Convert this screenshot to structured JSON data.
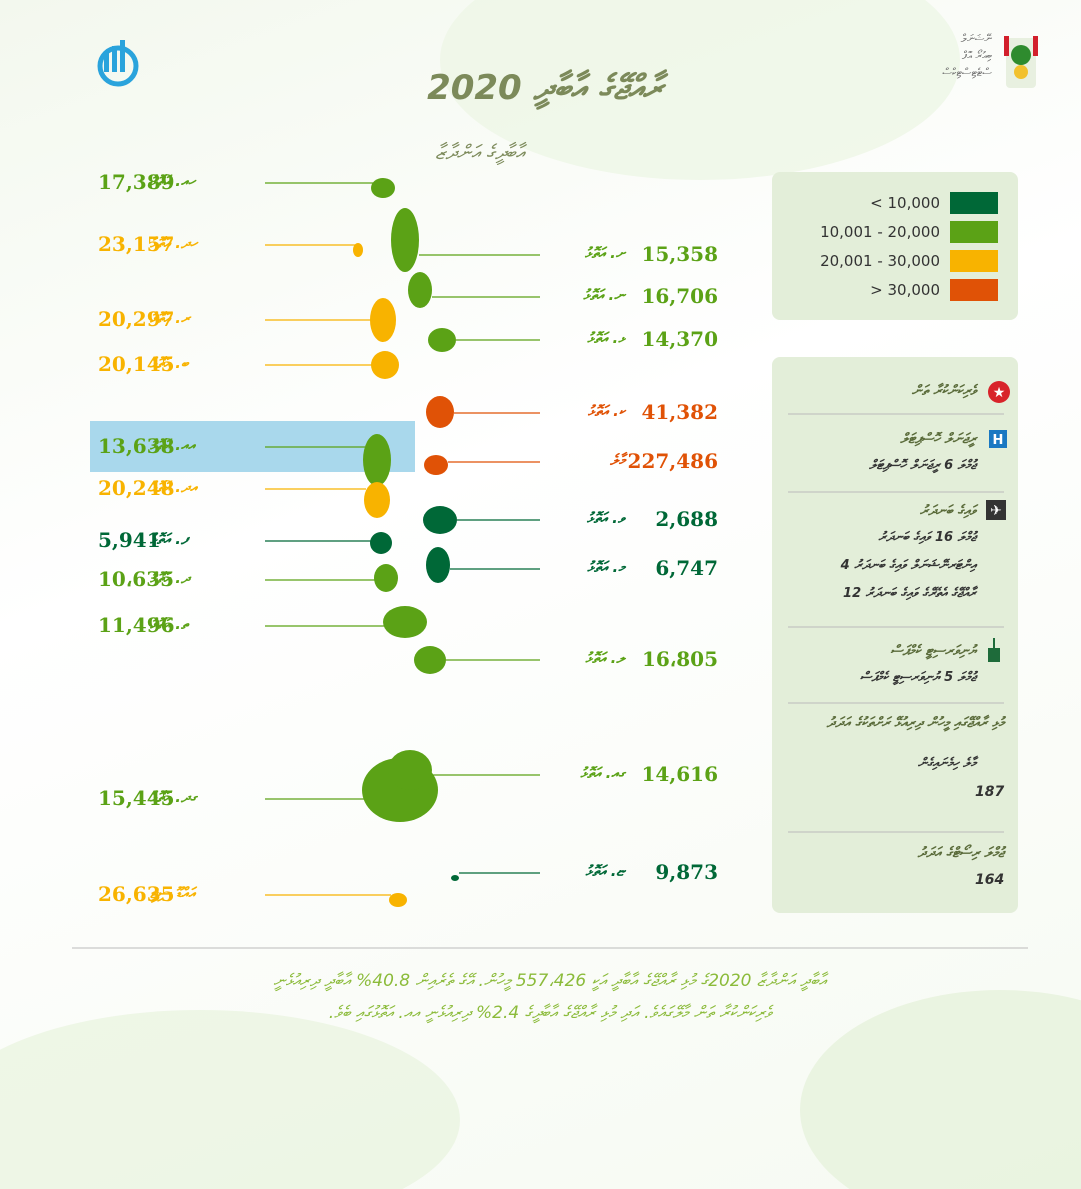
{
  "header": {
    "title": "ރާއްޖޭގެ އާބާދީ 2020",
    "subtitle": "އާބާދީގެ އަންދާޒާ",
    "agency": [
      "ނޭޝަނަލް",
      "ބިއުރޯ އޮފް",
      "ސްޓެޓިސްޓިކްސް"
    ]
  },
  "legend": [
    {
      "label": "< 10,000",
      "color": "#006837"
    },
    {
      "label": "10,001 - 20,000",
      "color": "#5ba216"
    },
    {
      "label": "20,001 - 30,000",
      "color": "#f8b300"
    },
    {
      "label": "> 30,000",
      "color": "#e05206"
    }
  ],
  "atolls_left": [
    {
      "name": "ހއ. އަތޮޅު",
      "population": "17,389",
      "color": "#5ba216"
    },
    {
      "name": "ހދ. އަތޮޅު",
      "population": "23,157",
      "color": "#f8b300"
    },
    {
      "name": "ރ. އަތޮޅު",
      "population": "20,297",
      "color": "#f8b300"
    },
    {
      "name": "ބ. އަތޮޅު",
      "population": "20,145",
      "color": "#f8b300"
    },
    {
      "name": "އއ. އަތޮޅު",
      "population": "13,638",
      "color": "#5ba216"
    },
    {
      "name": "އދ. އަތޮޅު",
      "population": "20,248",
      "color": "#f8b300"
    },
    {
      "name": "ފ. އަތޮޅު",
      "population": "5,941",
      "color": "#006837"
    },
    {
      "name": "ދ. އަތޮޅު",
      "population": "10،635",
      "color": "#5ba216"
    },
    {
      "name": "ތ. އަތޮޅު",
      "population": "11,496",
      "color": "#5ba216"
    },
    {
      "name": "ގދ. އަތޮޅު",
      "population": "15,445",
      "color": "#5ba216"
    },
    {
      "name": "އައްޑޫ ސިޓީ",
      "population": "26,635",
      "color": "#f8b300"
    }
  ],
  "atolls_right": [
    {
      "name": "ށ. އަތޮޅު",
      "population": "15,358",
      "color": "#5ba216"
    },
    {
      "name": "ނ. އަތޮޅު",
      "population": "16,706",
      "color": "#5ba216"
    },
    {
      "name": "ޅ. އަތޮޅު",
      "population": "14,370",
      "color": "#5ba216"
    },
    {
      "name": "ކ. އަތޮޅު",
      "population": "41,382",
      "color": "#e05206"
    },
    {
      "name": "މާލެ",
      "population": "227,486",
      "color": "#e05206"
    },
    {
      "name": "ވ. އަތޮޅު",
      "population": "2,688",
      "color": "#006837"
    },
    {
      "name": "މ. އަތޮޅު",
      "population": "6,747",
      "color": "#006837"
    },
    {
      "name": "ލ. އަތޮޅު",
      "population": "16،805",
      "color": "#5ba216"
    },
    {
      "name": "ގއ. އަތޮޅު",
      "population": "14,616",
      "color": "#5ba216"
    },
    {
      "name": "ޏ. އަތޮޅު",
      "population": "9,873",
      "color": "#006837"
    }
  ],
  "key": [
    {
      "title": "ވެރިކަންކުރާ ތަން",
      "lines": []
    },
    {
      "title": "ރީޖަނަލް ހޮސްޕިޓަލް",
      "lines": [
        "ޖުމްލަ 6 ރީޖަނަލް ހޮސްޕިޓަލް"
      ]
    },
    {
      "title": "ވައިގެ ބަނދަރު",
      "lines": [
        "ޖުމްލަ 16 ވައިގެ ބަނދަރު",
        "އިންޓަރނޭޝަނަލް ވައިގެ ބަނދަރު 4",
        "ރާއްޖޭގެ އެތެރޭގެ ވައިގެ ބަނދަރު 12"
      ]
    },
    {
      "title": "ޔުނިވަރސިޓީ ކެމްޕަސް",
      "lines": [
        "ޖުމްލަ 5 ޔުނިވަރސިޓީ ކެމްޕަސް"
      ]
    },
    {
      "title": "މުޅި ރާއްޖޭގައި މީހުން ދިރިއުޅޭ ރަށްތަކުގެ އަދަދު",
      "lines": [
        "މާލެ ހިމެނައިގެން",
        "187"
      ]
    },
    {
      "title": "ޖުމްލަ ރިސޯޓްގެ އަދަދު",
      "lines": [
        "164"
      ]
    }
  ],
  "footer": [
    "އާބާދީ އަންދާޒާ 2020ގެ މުޅި ރާއްޖޭގެ އާބާދީ އަކީ 557،426 މީހުން. އޭގެ ތެރެއިން 40.8% އާބާދީ ދިރިއުޅެނީ",
    "ވެރިކަންކުރާ ތަން މާލޭގައެވެ. އަދި މުޅި ރާއްޖޭގެ އާބާދީގެ 2.4% ދިރިއުޅެނީ އއ. އަތޮޅުގައި ބެވެ."
  ]
}
